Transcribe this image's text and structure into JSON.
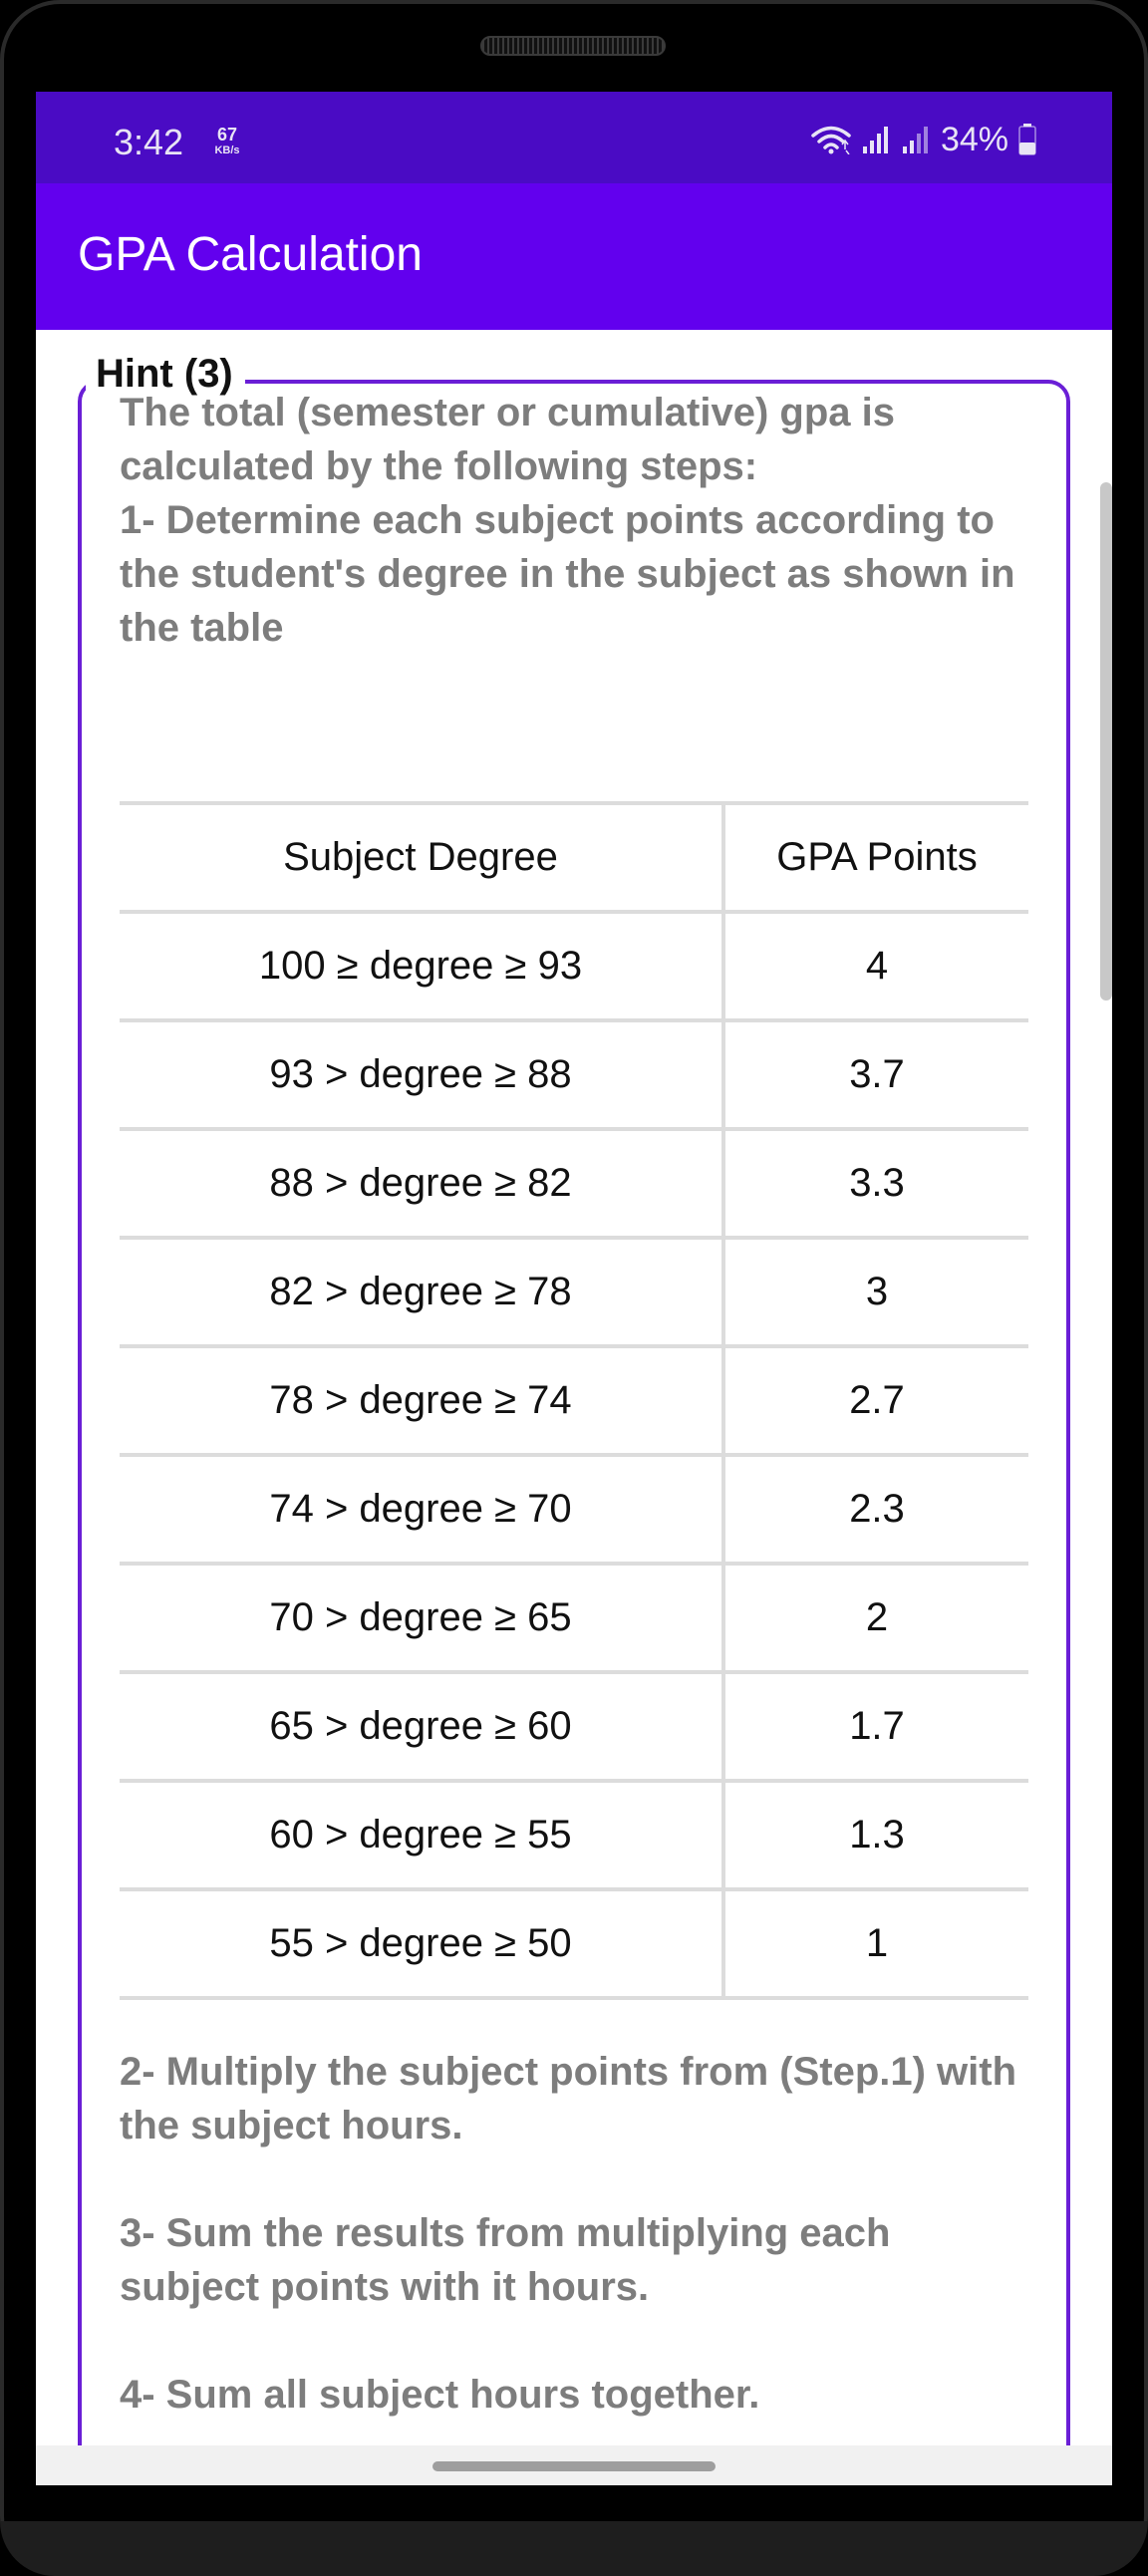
{
  "status_bar": {
    "time": "3:42",
    "net_speed_value": "67",
    "net_speed_unit": "KB/s",
    "battery": "34%",
    "icons": [
      "wifi-icon",
      "signal-icon",
      "signal-icon",
      "battery-icon"
    ]
  },
  "app_bar": {
    "title": "GPA Calculation"
  },
  "hint": {
    "legend": "Hint (3)",
    "intro": "The total (semester or cumulative) gpa is calculated by the following steps:",
    "step1": "1- Determine each subject points according to the student's degree in the subject as shown in the table",
    "step2": "2- Multiply the subject points from (Step.1) with the subject hours.",
    "step3": "3- Sum the results from multiplying each subject points with it hours.",
    "step4": "4- Sum all subject hours together."
  },
  "table": {
    "headers": [
      "Subject Degree",
      "GPA Points"
    ],
    "rows": [
      [
        "100 ≥ degree ≥ 93",
        "4"
      ],
      [
        "93 > degree ≥ 88",
        "3.7"
      ],
      [
        "88 > degree ≥ 82",
        "3.3"
      ],
      [
        "82 > degree ≥ 78",
        "3"
      ],
      [
        "78 > degree ≥ 74",
        "2.7"
      ],
      [
        "74 > degree ≥ 70",
        "2.3"
      ],
      [
        "70 > degree ≥ 65",
        "2"
      ],
      [
        "65 > degree ≥ 60",
        "1.7"
      ],
      [
        "60 > degree ≥ 55",
        "1.3"
      ],
      [
        "55 > degree ≥ 50",
        "1"
      ]
    ]
  },
  "colors": {
    "status_bar": "#4a0bc4",
    "app_bar": "#6200ee",
    "hint_border": "#6a1fd6",
    "hint_text": "#7d7d7d"
  }
}
